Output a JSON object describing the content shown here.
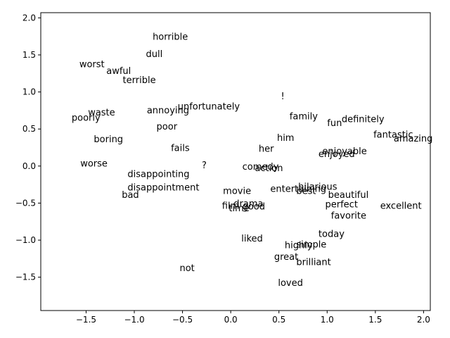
{
  "chart_data": {
    "type": "scatter",
    "title": "",
    "xlabel": "",
    "ylabel": "",
    "xlim": [
      -1.97,
      2.07
    ],
    "ylim": [
      -1.95,
      2.07
    ],
    "grid": false,
    "legend": "none",
    "xticks": [
      -1.5,
      -1.0,
      -0.5,
      0.0,
      0.5,
      1.0,
      1.5,
      2.0
    ],
    "yticks": [
      2.0,
      1.5,
      1.0,
      0.5,
      0.0,
      -0.5,
      -1.0,
      -1.5
    ],
    "xtick_labels": [
      "−1.5",
      "−1.0",
      "−0.5",
      "0.0",
      "0.5",
      "1.0",
      "1.5",
      "2.0"
    ],
    "ytick_labels": [
      "2.0",
      "1.5",
      "1.0",
      "0.5",
      "0.0",
      "−0.5",
      "−1.0",
      "−1.5"
    ],
    "points": [
      {
        "text": "horrible",
        "x": -0.81,
        "y": 1.74
      },
      {
        "text": "dull",
        "x": -0.88,
        "y": 1.51
      },
      {
        "text": "worst",
        "x": -1.57,
        "y": 1.37
      },
      {
        "text": "awful",
        "x": -1.29,
        "y": 1.28
      },
      {
        "text": "terrible",
        "x": -1.12,
        "y": 1.16
      },
      {
        "text": "!",
        "x": 0.52,
        "y": 0.94
      },
      {
        "text": "unfortunately",
        "x": -0.55,
        "y": 0.8
      },
      {
        "text": "annoying",
        "x": -0.87,
        "y": 0.75
      },
      {
        "text": "waste",
        "x": -1.48,
        "y": 0.72
      },
      {
        "text": "poorly",
        "x": -1.65,
        "y": 0.65
      },
      {
        "text": "family",
        "x": 0.61,
        "y": 0.67
      },
      {
        "text": "definitely",
        "x": 1.15,
        "y": 0.63
      },
      {
        "text": "fun",
        "x": 1.0,
        "y": 0.58
      },
      {
        "text": "poor",
        "x": -0.77,
        "y": 0.53
      },
      {
        "text": "fantastic",
        "x": 1.48,
        "y": 0.42
      },
      {
        "text": "amazing",
        "x": 1.69,
        "y": 0.37
      },
      {
        "text": "him",
        "x": 0.48,
        "y": 0.38
      },
      {
        "text": "boring",
        "x": -1.42,
        "y": 0.36
      },
      {
        "text": "her",
        "x": 0.29,
        "y": 0.23
      },
      {
        "text": "fails",
        "x": -0.62,
        "y": 0.24
      },
      {
        "text": "enjoyable",
        "x": 0.95,
        "y": 0.2
      },
      {
        "text": "enjoyed",
        "x": 0.91,
        "y": 0.16
      },
      {
        "text": "worse",
        "x": -1.56,
        "y": 0.03
      },
      {
        "text": "?",
        "x": -0.3,
        "y": 0.01
      },
      {
        "text": "comedy",
        "x": 0.12,
        "y": -0.01
      },
      {
        "text": "action",
        "x": 0.25,
        "y": -0.03
      },
      {
        "text": "disappointing",
        "x": -1.07,
        "y": -0.11
      },
      {
        "text": "disappointment",
        "x": -1.07,
        "y": -0.29
      },
      {
        "text": "hilarious",
        "x": 0.7,
        "y": -0.28
      },
      {
        "text": "entertaining",
        "x": 0.41,
        "y": -0.31
      },
      {
        "text": "best",
        "x": 0.68,
        "y": -0.34
      },
      {
        "text": "movie",
        "x": -0.08,
        "y": -0.34
      },
      {
        "text": "bad",
        "x": -1.13,
        "y": -0.39
      },
      {
        "text": "beautiful",
        "x": 1.01,
        "y": -0.39
      },
      {
        "text": "drama",
        "x": 0.03,
        "y": -0.51
      },
      {
        "text": "perfect",
        "x": 0.98,
        "y": -0.52
      },
      {
        "text": "excellent",
        "x": 1.55,
        "y": -0.54
      },
      {
        "text": "film",
        "x": -0.09,
        "y": -0.54
      },
      {
        "text": "good",
        "x": 0.12,
        "y": -0.55
      },
      {
        "text": "time",
        "x": -0.02,
        "y": -0.57
      },
      {
        "text": "favorite",
        "x": 1.04,
        "y": -0.67
      },
      {
        "text": "today",
        "x": 0.91,
        "y": -0.92
      },
      {
        "text": "liked",
        "x": 0.11,
        "y": -0.98
      },
      {
        "text": "highly",
        "x": 0.56,
        "y": -1.07
      },
      {
        "text": "simple",
        "x": 0.68,
        "y": -1.06
      },
      {
        "text": "great",
        "x": 0.45,
        "y": -1.23
      },
      {
        "text": "brilliant",
        "x": 0.68,
        "y": -1.3
      },
      {
        "text": "not",
        "x": -0.53,
        "y": -1.38
      },
      {
        "text": "loved",
        "x": 0.49,
        "y": -1.58
      }
    ]
  }
}
